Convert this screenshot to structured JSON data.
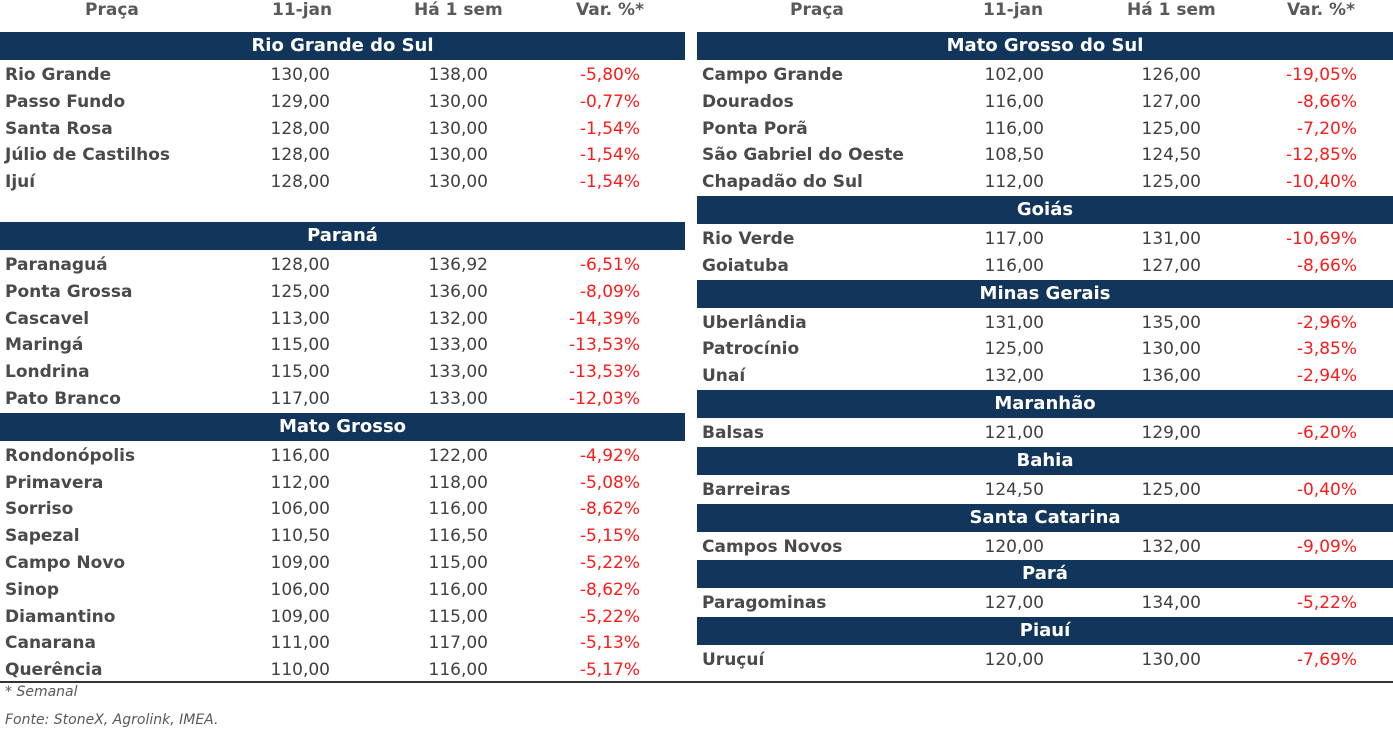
{
  "columns": {
    "praca": "Praça",
    "date": "11-jan",
    "prev": "Há 1 sem",
    "var": "Var. %*"
  },
  "left": [
    {
      "state": "Rio Grande do Sul",
      "rows": [
        [
          "Rio Grande",
          "130,00",
          "138,00",
          "-5,80%"
        ],
        [
          "Passo Fundo",
          "129,00",
          "130,00",
          "-0,77%"
        ],
        [
          "Santa Rosa",
          "128,00",
          "130,00",
          "-1,54%"
        ],
        [
          "Júlio de Castilhos",
          "128,00",
          "130,00",
          "-1,54%"
        ],
        [
          "Ijuí",
          "128,00",
          "130,00",
          "-1,54%"
        ]
      ],
      "spacer_after": true
    },
    {
      "state": "Paraná",
      "rows": [
        [
          "Paranaguá",
          "128,00",
          "136,92",
          "-6,51%"
        ],
        [
          "Ponta Grossa",
          "125,00",
          "136,00",
          "-8,09%"
        ],
        [
          "Cascavel",
          "113,00",
          "132,00",
          "-14,39%"
        ],
        [
          "Maringá",
          "115,00",
          "133,00",
          "-13,53%"
        ],
        [
          "Londrina",
          "115,00",
          "133,00",
          "-13,53%"
        ],
        [
          "Pato Branco",
          "117,00",
          "133,00",
          "-12,03%"
        ]
      ]
    },
    {
      "state": "Mato Grosso",
      "rows": [
        [
          "Rondonópolis",
          "116,00",
          "122,00",
          "-4,92%"
        ],
        [
          "Primavera",
          "112,00",
          "118,00",
          "-5,08%"
        ],
        [
          "Sorriso",
          "106,00",
          "116,00",
          "-8,62%"
        ],
        [
          "Sapezal",
          "110,50",
          "116,50",
          "-5,15%"
        ],
        [
          "Campo Novo",
          "109,00",
          "115,00",
          "-5,22%"
        ],
        [
          "Sinop",
          "106,00",
          "116,00",
          "-8,62%"
        ],
        [
          "Diamantino",
          "109,00",
          "115,00",
          "-5,22%"
        ],
        [
          "Canarana",
          "111,00",
          "117,00",
          "-5,13%"
        ],
        [
          "Querência",
          "110,00",
          "116,00",
          "-5,17%"
        ]
      ]
    }
  ],
  "right": [
    {
      "state": "Mato Grosso do Sul",
      "rows": [
        [
          "Campo Grande",
          "102,00",
          "126,00",
          "-19,05%"
        ],
        [
          "Dourados",
          "116,00",
          "127,00",
          "-8,66%"
        ],
        [
          "Ponta Porã",
          "116,00",
          "125,00",
          "-7,20%"
        ],
        [
          "São Gabriel do Oeste",
          "108,50",
          "124,50",
          "-12,85%"
        ],
        [
          "Chapadão do Sul",
          "112,00",
          "125,00",
          "-10,40%"
        ]
      ]
    },
    {
      "state": "Goiás",
      "rows": [
        [
          "Rio Verde",
          "117,00",
          "131,00",
          "-10,69%"
        ],
        [
          "Goiatuba",
          "116,00",
          "127,00",
          "-8,66%"
        ]
      ]
    },
    {
      "state": "Minas Gerais",
      "rows": [
        [
          "Uberlândia",
          "131,00",
          "135,00",
          "-2,96%"
        ],
        [
          "Patrocínio",
          "125,00",
          "130,00",
          "-3,85%"
        ],
        [
          "Unaí",
          "132,00",
          "136,00",
          "-2,94%"
        ]
      ]
    },
    {
      "state": "Maranhão",
      "rows": [
        [
          "Balsas",
          "121,00",
          "129,00",
          "-6,20%"
        ]
      ]
    },
    {
      "state": "Bahia",
      "rows": [
        [
          "Barreiras",
          "124,50",
          "125,00",
          "-0,40%"
        ]
      ]
    },
    {
      "state": "Santa Catarina",
      "rows": [
        [
          "Campos Novos",
          "120,00",
          "132,00",
          "-9,09%"
        ]
      ]
    },
    {
      "state": "Pará",
      "rows": [
        [
          "Paragominas",
          "127,00",
          "134,00",
          "-5,22%"
        ]
      ]
    },
    {
      "state": "Piauí",
      "rows": [
        [
          "Uruçuí",
          "120,00",
          "130,00",
          "-7,69%"
        ]
      ]
    }
  ],
  "footnote": "* Semanal",
  "source": "Fonte: StoneX, Agrolink, IMEA."
}
